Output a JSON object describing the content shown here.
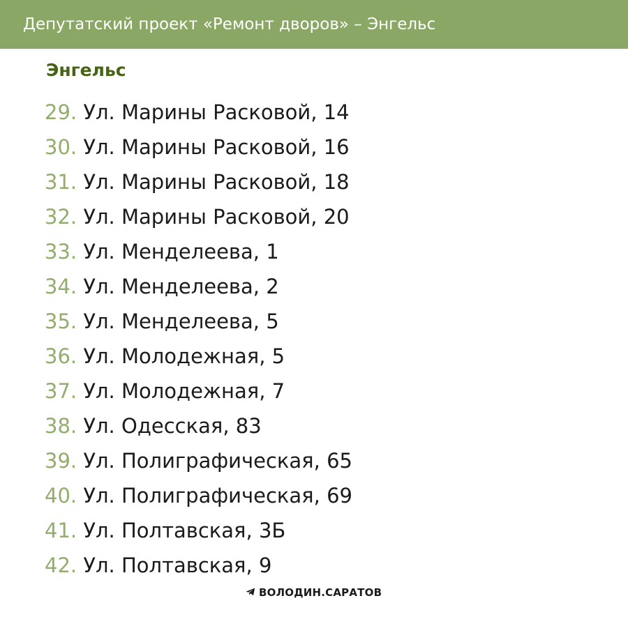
{
  "header": {
    "title": "Депутатский проект «Ремонт дворов» – Энгельс"
  },
  "section": {
    "title": "Энгельс"
  },
  "items": [
    {
      "num": "29.",
      "text": "Ул. Марины Расковой, 14"
    },
    {
      "num": "30.",
      "text": "Ул. Марины Расковой, 16"
    },
    {
      "num": "31.",
      "text": "Ул. Марины Расковой, 18"
    },
    {
      "num": "32.",
      "text": "Ул. Марины Расковой, 20"
    },
    {
      "num": "33.",
      "text": "Ул. Менделеева, 1"
    },
    {
      "num": "34.",
      "text": "Ул. Менделеева, 2"
    },
    {
      "num": "35.",
      "text": "Ул. Менделеева, 5"
    },
    {
      "num": "36.",
      "text": "Ул. Молодежная, 5"
    },
    {
      "num": "37.",
      "text": "Ул. Молодежная, 7"
    },
    {
      "num": "38.",
      "text": "Ул. Одесская, 83"
    },
    {
      "num": "39.",
      "text": "Ул. Полиграфическая, 65"
    },
    {
      "num": "40.",
      "text": "Ул. Полиграфическая, 69"
    },
    {
      "num": "41.",
      "text": "Ул. Полтавская, 3Б"
    },
    {
      "num": "42.",
      "text": "Ул. Полтавская, 9"
    }
  ],
  "footer": {
    "icon": "telegram-icon",
    "text": "ВОЛОДИН.САРАТОВ"
  },
  "colors": {
    "header_bg": "#8ba765",
    "number": "#93ad6c",
    "section_title": "#476315",
    "text": "#1b1b1b"
  }
}
